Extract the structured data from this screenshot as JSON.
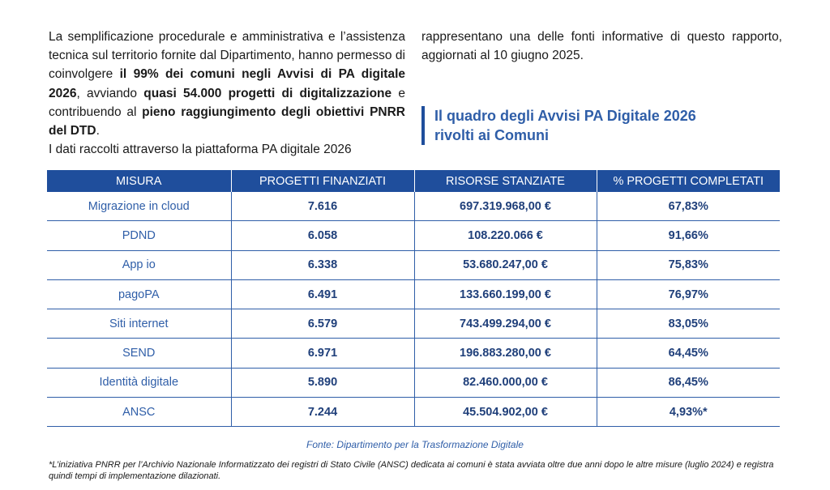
{
  "left_paragraph": {
    "s1": "La semplificazione procedurale e amministrativa e l’assistenza tecnica sul territorio fornite dal Dipartimento, hanno permesso di coinvolgere ",
    "b1": "il 99% dei comuni negli Avvisi di PA digitale 2026",
    "s2": ", avviando ",
    "b2": "quasi 54.000 progetti di digitalizzazione",
    "s3": " e contribuendo al ",
    "b3": "pieno raggiungimento degli obiettivi PNRR del DTD",
    "s4": ".",
    "s5": "I dati raccolti attraverso la piattaforma PA digitale 2026"
  },
  "right_paragraph": "rappresentano una delle fonti informative di questo rapporto, aggiornati al 10 giugno 2025.",
  "section_title": {
    "line1": "Il quadro degli Avvisi PA Digitale 2026",
    "line2": "rivolti ai Comuni"
  },
  "table": {
    "headers": [
      "MISURA",
      "PROGETTI FINANZIATI",
      "RISORSE STANZIATE",
      "% PROGETTI COMPLETATI"
    ],
    "rows": [
      {
        "misura": "Migrazione in cloud",
        "progetti": "7.616",
        "risorse": "697.319.968,00 €",
        "completati": "67,83%"
      },
      {
        "misura": "PDND",
        "progetti": "6.058",
        "risorse": "108.220.066 €",
        "completati": "91,66%"
      },
      {
        "misura": "App io",
        "progetti": "6.338",
        "risorse": "53.680.247,00 €",
        "completati": "75,83%"
      },
      {
        "misura": "pagoPA",
        "progetti": "6.491",
        "risorse": "133.660.199,00 €",
        "completati": "76,97%"
      },
      {
        "misura": "Siti internet",
        "progetti": "6.579",
        "risorse": "743.499.294,00 €",
        "completati": "83,05%"
      },
      {
        "misura": "SEND",
        "progetti": "6.971",
        "risorse": "196.883.280,00 €",
        "completati": "64,45%"
      },
      {
        "misura": "Identità digitale",
        "progetti": "5.890",
        "risorse": "82.460.000,00 €",
        "completati": "86,45%"
      },
      {
        "misura": "ANSC",
        "progetti": "7.244",
        "risorse": "45.504.902,00 €",
        "completati": "4,93%*"
      }
    ]
  },
  "source": "Fonte: Dipartimento per la Trasformazione Digitale",
  "footnote": "*L’iniziativa PNRR per l’Archivio Nazionale Informatizzato dei registri di Stato Civile (ANSC) dedicata ai comuni è stata avviata oltre due anni dopo le altre misure (luglio 2024) e registra quindi tempi di implementazione dilazionati."
}
